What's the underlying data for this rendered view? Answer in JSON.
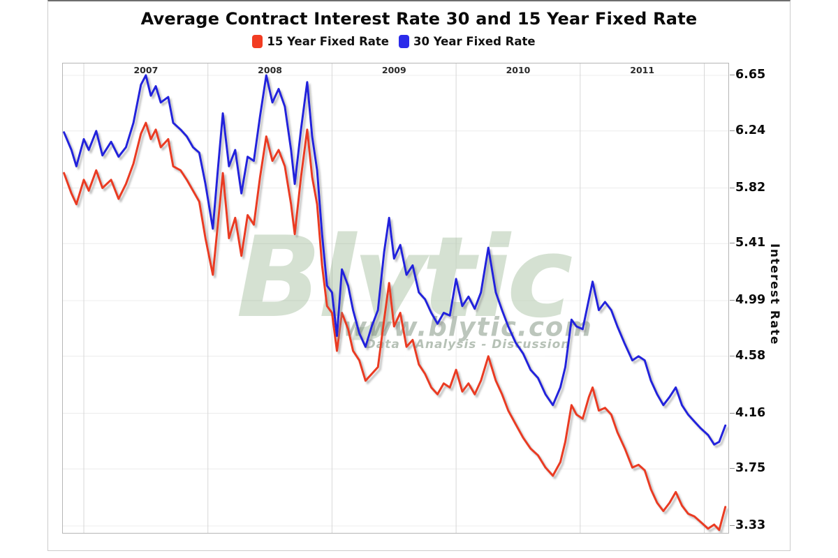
{
  "watermark": {
    "brand": "Blytic",
    "url": "www.blytic.com",
    "tagline": "Data - Analysis - Discussion"
  },
  "chart_data": {
    "type": "line",
    "title": "Average Contract Interest Rate 30 and 15 Year Fixed Rate",
    "ylabel": "Interest Rate",
    "grid": true,
    "legend": {
      "position": "top",
      "items": [
        {
          "label": "15 Year Fixed Rate",
          "color": "#f23c22"
        },
        {
          "label": "30 Year Fixed Rate",
          "color": "#2b2bea"
        }
      ]
    },
    "x_axis": {
      "position": "top",
      "labels": [
        "2007",
        "2008",
        "2009",
        "2010",
        "2011"
      ],
      "gridline_years": [
        2007,
        2008,
        2009,
        2010,
        2011,
        2012
      ],
      "domain": [
        2006.83,
        2012.21
      ]
    },
    "y_axis": {
      "position": "right",
      "range": [
        3.33,
        6.65
      ],
      "ticks": [
        6.65,
        6.24,
        5.82,
        5.41,
        4.99,
        4.58,
        4.16,
        3.75,
        3.33
      ],
      "tick_labels": [
        "6.65",
        "6.24",
        "5.82",
        "5.41",
        "4.99",
        "4.58",
        "4.16",
        "3.75",
        "3.33"
      ]
    },
    "x": [
      2006.84,
      2006.9,
      2006.94,
      2007.0,
      2007.04,
      2007.1,
      2007.15,
      2007.22,
      2007.28,
      2007.34,
      2007.4,
      2007.46,
      2007.5,
      2007.54,
      2007.58,
      2007.62,
      2007.68,
      2007.72,
      2007.78,
      2007.83,
      2007.88,
      2007.93,
      2007.98,
      2008.04,
      2008.08,
      2008.12,
      2008.17,
      2008.22,
      2008.27,
      2008.32,
      2008.37,
      2008.42,
      2008.47,
      2008.52,
      2008.57,
      2008.62,
      2008.67,
      2008.7,
      2008.75,
      2008.8,
      2008.84,
      2008.88,
      2008.92,
      2008.96,
      2009.0,
      2009.04,
      2009.08,
      2009.13,
      2009.17,
      2009.22,
      2009.27,
      2009.32,
      2009.37,
      2009.42,
      2009.46,
      2009.5,
      2009.55,
      2009.6,
      2009.65,
      2009.7,
      2009.75,
      2009.8,
      2009.85,
      2009.9,
      2009.95,
      2010.0,
      2010.05,
      2010.1,
      2010.15,
      2010.2,
      2010.26,
      2010.32,
      2010.37,
      2010.42,
      2010.48,
      2010.54,
      2010.6,
      2010.66,
      2010.72,
      2010.78,
      2010.84,
      2010.88,
      2010.93,
      2010.97,
      2011.02,
      2011.07,
      2011.1,
      2011.15,
      2011.2,
      2011.25,
      2011.3,
      2011.36,
      2011.42,
      2011.47,
      2011.52,
      2011.57,
      2011.62,
      2011.67,
      2011.72,
      2011.77,
      2011.82,
      2011.87,
      2011.92,
      2011.97,
      2012.03,
      2012.08,
      2012.12,
      2012.17
    ],
    "series": [
      {
        "name": "15 Year Fixed Rate",
        "color": "#ea3a22",
        "values": [
          5.93,
          5.78,
          5.7,
          5.88,
          5.8,
          5.95,
          5.82,
          5.88,
          5.74,
          5.85,
          6.0,
          6.22,
          6.3,
          6.18,
          6.25,
          6.12,
          6.18,
          5.98,
          5.95,
          5.88,
          5.8,
          5.72,
          5.45,
          5.18,
          5.55,
          5.93,
          5.45,
          5.6,
          5.32,
          5.62,
          5.55,
          5.9,
          6.2,
          6.02,
          6.1,
          5.98,
          5.7,
          5.48,
          5.9,
          6.25,
          5.9,
          5.7,
          5.25,
          4.95,
          4.9,
          4.62,
          4.9,
          4.78,
          4.62,
          4.55,
          4.4,
          4.45,
          4.5,
          4.85,
          5.12,
          4.8,
          4.9,
          4.65,
          4.7,
          4.52,
          4.45,
          4.35,
          4.3,
          4.38,
          4.35,
          4.48,
          4.32,
          4.38,
          4.3,
          4.4,
          4.58,
          4.4,
          4.3,
          4.18,
          4.08,
          3.98,
          3.9,
          3.85,
          3.76,
          3.7,
          3.8,
          3.95,
          4.22,
          4.15,
          4.12,
          4.28,
          4.35,
          4.18,
          4.2,
          4.15,
          4.02,
          3.9,
          3.76,
          3.78,
          3.74,
          3.6,
          3.5,
          3.44,
          3.5,
          3.58,
          3.48,
          3.42,
          3.4,
          3.36,
          3.31,
          3.34,
          3.3,
          3.47
        ]
      },
      {
        "name": "30 Year Fixed Rate",
        "color": "#2424dc",
        "values": [
          6.23,
          6.1,
          5.98,
          6.18,
          6.1,
          6.24,
          6.06,
          6.16,
          6.05,
          6.12,
          6.3,
          6.58,
          6.65,
          6.5,
          6.57,
          6.45,
          6.49,
          6.3,
          6.25,
          6.2,
          6.12,
          6.08,
          5.85,
          5.52,
          5.95,
          6.37,
          5.98,
          6.1,
          5.78,
          6.05,
          6.02,
          6.35,
          6.65,
          6.45,
          6.55,
          6.42,
          6.1,
          5.85,
          6.25,
          6.6,
          6.2,
          5.95,
          5.48,
          5.1,
          5.05,
          4.73,
          5.22,
          5.1,
          4.92,
          4.75,
          4.65,
          4.8,
          4.92,
          5.35,
          5.6,
          5.3,
          5.4,
          5.18,
          5.25,
          5.05,
          5.0,
          4.9,
          4.82,
          4.9,
          4.88,
          5.15,
          4.95,
          5.02,
          4.93,
          5.05,
          5.38,
          5.05,
          4.92,
          4.8,
          4.68,
          4.6,
          4.48,
          4.42,
          4.3,
          4.22,
          4.35,
          4.5,
          4.85,
          4.8,
          4.78,
          5.0,
          5.13,
          4.92,
          4.98,
          4.92,
          4.8,
          4.67,
          4.55,
          4.58,
          4.55,
          4.4,
          4.3,
          4.22,
          4.28,
          4.35,
          4.22,
          4.15,
          4.1,
          4.05,
          4.0,
          3.93,
          3.95,
          4.07
        ]
      }
    ]
  }
}
